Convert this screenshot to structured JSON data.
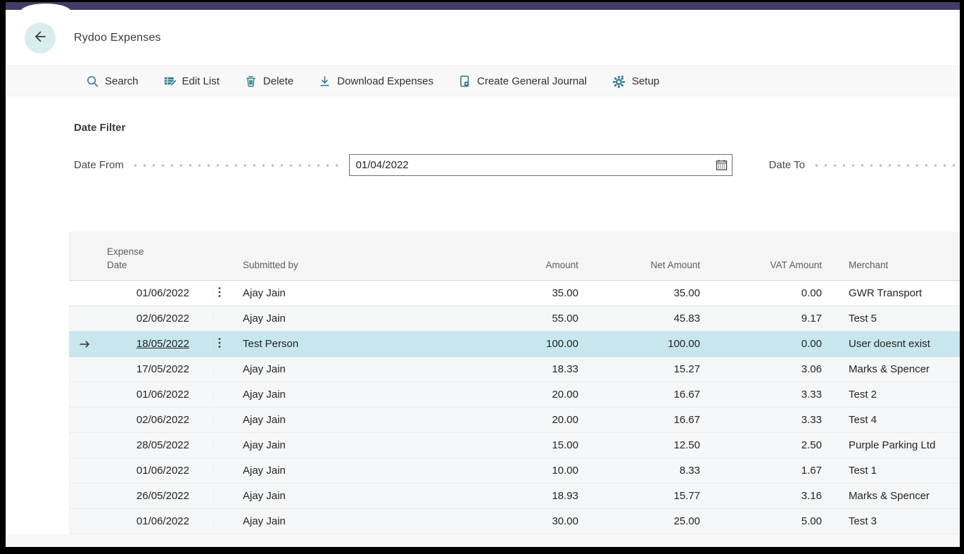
{
  "app": {
    "title": "Rydoo Expenses"
  },
  "colors": {
    "topbar": "#403d66",
    "accent_teal": "#2e7d8c",
    "selected_row": "#c7e6ed",
    "back_circle": "#d9edef",
    "toolbar_bg": "#f8f8f8"
  },
  "toolbar": {
    "items": [
      {
        "label": "Search",
        "icon": "search-icon"
      },
      {
        "label": "Edit List",
        "icon": "edit-list-icon"
      },
      {
        "label": "Delete",
        "icon": "delete-icon"
      },
      {
        "label": "Download Expenses",
        "icon": "download-icon"
      },
      {
        "label": "Create General Journal",
        "icon": "journal-icon"
      },
      {
        "label": "Setup",
        "icon": "setup-gear-icon"
      }
    ]
  },
  "filter": {
    "section_title": "Date Filter",
    "date_from": {
      "label": "Date From",
      "value": "01/04/2022",
      "icon": "calendar-icon"
    },
    "date_to": {
      "label": "Date To",
      "value": ""
    }
  },
  "table": {
    "columns": {
      "expense_date": "Expense Date",
      "submitted_by": "Submitted by",
      "amount": "Amount",
      "net_amount": "Net Amount",
      "vat_amount": "VAT Amount",
      "merchant": "Merchant"
    },
    "selected_row_index": 2,
    "rows": [
      {
        "expense_date": "01/06/2022",
        "has_menu": true,
        "selected": false,
        "submitted_by": "Ajay Jain",
        "amount": "35.00",
        "net_amount": "35.00",
        "vat_amount": "0.00",
        "merchant": "GWR Transport"
      },
      {
        "expense_date": "02/06/2022",
        "has_menu": false,
        "selected": false,
        "submitted_by": "Ajay Jain",
        "amount": "55.00",
        "net_amount": "45.83",
        "vat_amount": "9.17",
        "merchant": "Test 5"
      },
      {
        "expense_date": "18/05/2022",
        "has_menu": true,
        "selected": true,
        "submitted_by": "Test Person",
        "amount": "100.00",
        "net_amount": "100.00",
        "vat_amount": "0.00",
        "merchant": "User doesnt exist"
      },
      {
        "expense_date": "17/05/2022",
        "has_menu": false,
        "selected": false,
        "submitted_by": "Ajay Jain",
        "amount": "18.33",
        "net_amount": "15.27",
        "vat_amount": "3.06",
        "merchant": "Marks & Spencer"
      },
      {
        "expense_date": "01/06/2022",
        "has_menu": false,
        "selected": false,
        "submitted_by": "Ajay Jain",
        "amount": "20.00",
        "net_amount": "16.67",
        "vat_amount": "3.33",
        "merchant": "Test 2"
      },
      {
        "expense_date": "02/06/2022",
        "has_menu": false,
        "selected": false,
        "submitted_by": "Ajay Jain",
        "amount": "20.00",
        "net_amount": "16.67",
        "vat_amount": "3.33",
        "merchant": "Test 4"
      },
      {
        "expense_date": "28/05/2022",
        "has_menu": false,
        "selected": false,
        "submitted_by": "Ajay Jain",
        "amount": "15.00",
        "net_amount": "12.50",
        "vat_amount": "2.50",
        "merchant": "Purple Parking Ltd"
      },
      {
        "expense_date": "01/06/2022",
        "has_menu": false,
        "selected": false,
        "submitted_by": "Ajay Jain",
        "amount": "10.00",
        "net_amount": "8.33",
        "vat_amount": "1.67",
        "merchant": "Test 1"
      },
      {
        "expense_date": "26/05/2022",
        "has_menu": false,
        "selected": false,
        "submitted_by": "Ajay Jain",
        "amount": "18.93",
        "net_amount": "15.77",
        "vat_amount": "3.16",
        "merchant": "Marks & Spencer"
      },
      {
        "expense_date": "01/06/2022",
        "has_menu": false,
        "selected": false,
        "submitted_by": "Ajay Jain",
        "amount": "30.00",
        "net_amount": "25.00",
        "vat_amount": "5.00",
        "merchant": "Test 3"
      }
    ]
  }
}
